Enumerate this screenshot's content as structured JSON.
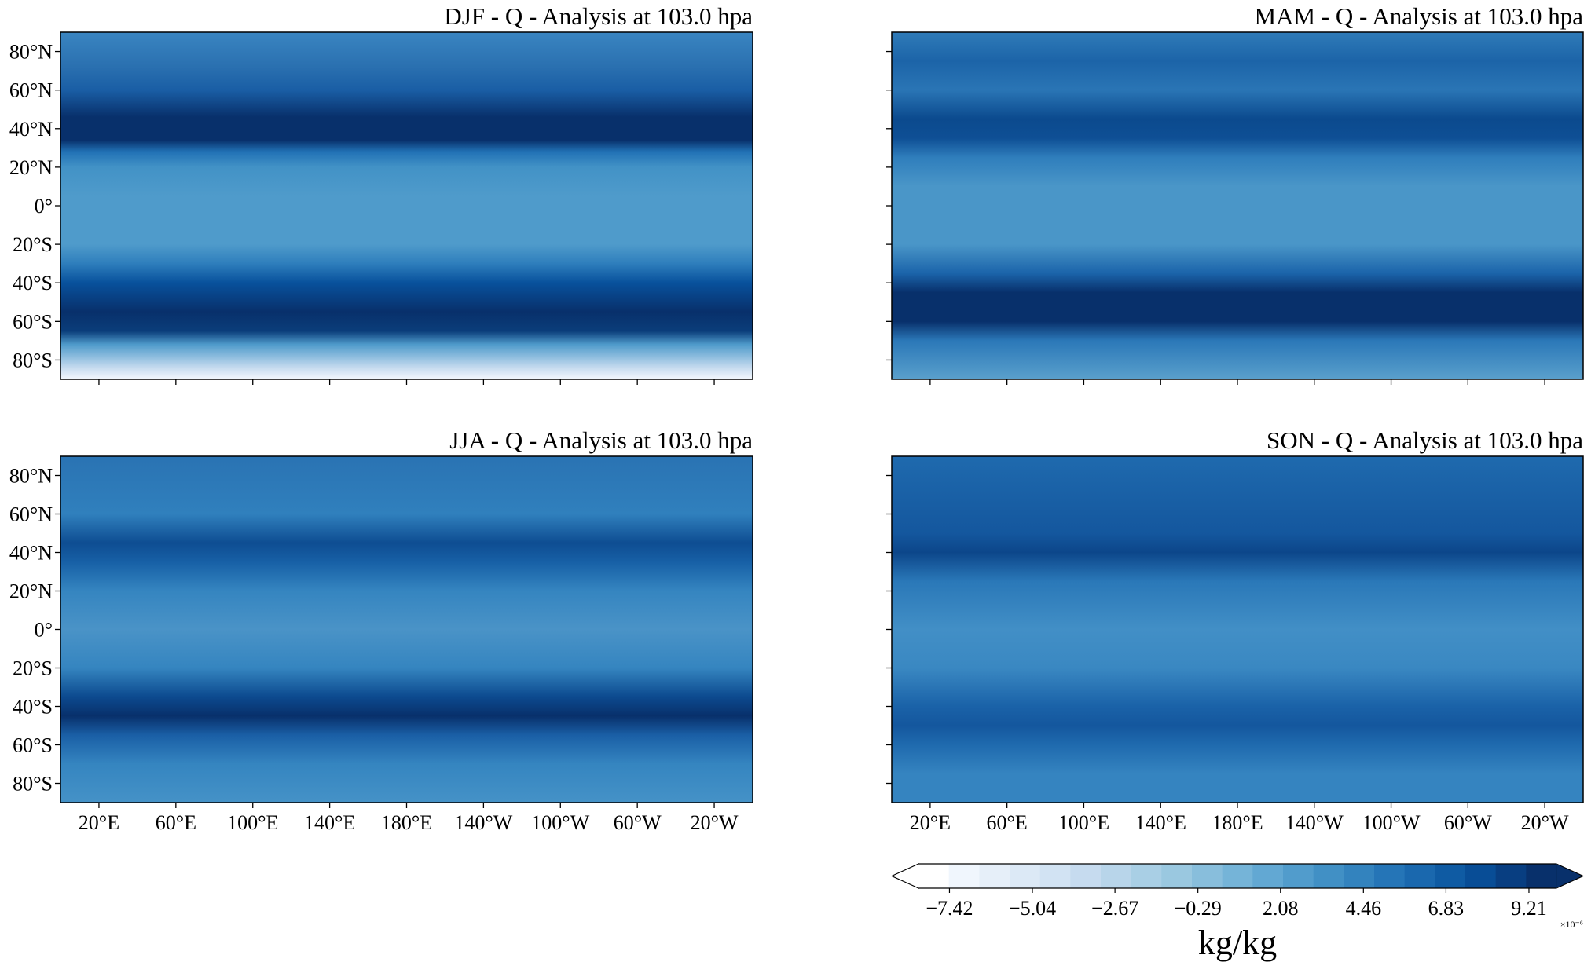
{
  "chart_data": {
    "type": "heatmap",
    "colormap": "Blues",
    "x_ticks": [
      "20°E",
      "60°E",
      "100°E",
      "140°E",
      "180°E",
      "140°W",
      "100°W",
      "60°W",
      "20°W"
    ],
    "x_tick_values": [
      20,
      60,
      100,
      140,
      180,
      220,
      260,
      300,
      340
    ],
    "xlim": [
      0,
      360
    ],
    "y_ticks": [
      "80°N",
      "60°N",
      "40°N",
      "20°N",
      "0°",
      "20°S",
      "40°S",
      "60°S",
      "80°S"
    ],
    "y_tick_values": [
      80,
      60,
      40,
      20,
      0,
      -20,
      -40,
      -60,
      -80
    ],
    "ylim": [
      -90,
      90
    ],
    "panels": [
      {
        "title": "DJF - Q - Analysis at 103.0 hpa",
        "profile": [
          [
            90,
            "#3a85c1"
          ],
          [
            72,
            "#2a70b0"
          ],
          [
            60,
            "#1a5ea5"
          ],
          [
            46,
            "#08306b"
          ],
          [
            34,
            "#08306b"
          ],
          [
            28,
            "#2171b5"
          ],
          [
            20,
            "#4292c6"
          ],
          [
            5,
            "#4f9bcb"
          ],
          [
            -20,
            "#4f9bcb"
          ],
          [
            -30,
            "#2e7ebc"
          ],
          [
            -40,
            "#08519c"
          ],
          [
            -55,
            "#08306b"
          ],
          [
            -65,
            "#0a3d7a"
          ],
          [
            -72,
            "#4f9bcb"
          ],
          [
            -84,
            "#c6dbef"
          ],
          [
            -90,
            "#f4f8fd"
          ]
        ]
      },
      {
        "title": "MAM - Q - Analysis at 103.0 hpa",
        "profile": [
          [
            90,
            "#2f7bb8"
          ],
          [
            75,
            "#1c64a8"
          ],
          [
            60,
            "#2a75b5"
          ],
          [
            45,
            "#0b4a8e"
          ],
          [
            35,
            "#0e4f95"
          ],
          [
            25,
            "#2f7ebc"
          ],
          [
            10,
            "#4a96c8"
          ],
          [
            -20,
            "#4a96c8"
          ],
          [
            -35,
            "#1b64aa"
          ],
          [
            -45,
            "#08306b"
          ],
          [
            -60,
            "#08306b"
          ],
          [
            -70,
            "#2b78b8"
          ],
          [
            -90,
            "#5aa0cc"
          ]
        ]
      },
      {
        "title": "JJA - Q - Analysis at 103.0 hpa",
        "profile": [
          [
            90,
            "#2a73b3"
          ],
          [
            60,
            "#3080bd"
          ],
          [
            45,
            "#0e4d92"
          ],
          [
            35,
            "#1760a6"
          ],
          [
            20,
            "#3585c0"
          ],
          [
            0,
            "#4a93c7"
          ],
          [
            -20,
            "#3585c0"
          ],
          [
            -35,
            "#0c4a8f"
          ],
          [
            -45,
            "#08306b"
          ],
          [
            -55,
            "#1a5fa6"
          ],
          [
            -70,
            "#3585c0"
          ],
          [
            -90,
            "#4592c7"
          ]
        ]
      },
      {
        "title": "SON - Q - Analysis at 103.0 hpa",
        "profile": [
          [
            90,
            "#1f6aae"
          ],
          [
            50,
            "#14579e"
          ],
          [
            40,
            "#0c468a"
          ],
          [
            25,
            "#2a78b8"
          ],
          [
            0,
            "#428fc6"
          ],
          [
            -20,
            "#3a88c2"
          ],
          [
            -40,
            "#1a62a8"
          ],
          [
            -50,
            "#14579e"
          ],
          [
            -60,
            "#1f6aae"
          ],
          [
            -75,
            "#3584c0"
          ],
          [
            -90,
            "#3584c0"
          ]
        ]
      }
    ],
    "colorbar": {
      "label": "kg/kg",
      "multiplier": "×10⁻⁶",
      "ticks": [
        "−7.42",
        "−5.04",
        "−2.67",
        "−0.29",
        "2.08",
        "4.46",
        "6.83",
        "9.21"
      ],
      "tick_values": [
        -7.42,
        -5.04,
        -2.67,
        -0.29,
        2.08,
        4.46,
        6.83,
        9.21
      ],
      "range": [
        -8.31,
        10.0
      ],
      "extend": "both",
      "colors": [
        "#ffffff",
        "#f0f6fd",
        "#e6eff9",
        "#dce9f6",
        "#d2e3f3",
        "#c6dbef",
        "#b8d5ea",
        "#a9cfe5",
        "#9ac8e0",
        "#88bedc",
        "#75b4d8",
        "#62a8d3",
        "#519ccc",
        "#4190c5",
        "#3383be",
        "#2575b7",
        "#1a68ae",
        "#0f5ba3",
        "#084d96",
        "#083e81",
        "#08306b"
      ]
    }
  }
}
